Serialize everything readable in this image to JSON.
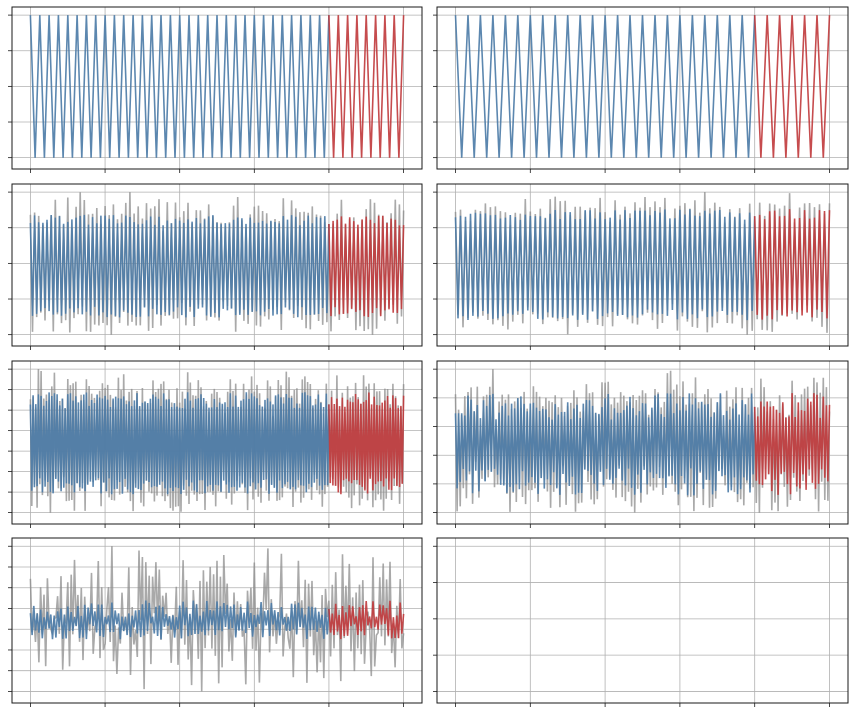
{
  "chart_data": [
    {
      "type": "line",
      "panel": 1,
      "n_cycles": 40,
      "split": 0.8,
      "level": [
        0,
        1
      ],
      "amp": 1.0,
      "noise": 0.0,
      "grey_extra": 0.0,
      "seed": 11,
      "series": [
        {
          "role": "history",
          "color": "#4a7aa6"
        },
        {
          "role": "forecast",
          "color": "#c0393b"
        },
        {
          "role": "actual",
          "color": "#8c8c8c"
        }
      ],
      "grid": true,
      "n_xticks": 6,
      "n_yticks": 5
    },
    {
      "type": "line",
      "panel": 2,
      "n_cycles": 30,
      "split": 0.8,
      "level": [
        0,
        1
      ],
      "amp": 1.0,
      "noise": 0.0,
      "grey_extra": 0.0,
      "seed": 12,
      "series": [
        {
          "role": "history",
          "color": "#4a7aa6"
        },
        {
          "role": "forecast",
          "color": "#c0393b"
        },
        {
          "role": "actual",
          "color": "#8c8c8c"
        }
      ],
      "grid": true,
      "n_xticks": 6,
      "n_yticks": 5
    },
    {
      "type": "line",
      "panel": 3,
      "n_cycles": 90,
      "split": 0.8,
      "level": [
        0,
        1
      ],
      "amp": 0.85,
      "noise": 0.05,
      "grey_extra": 0.12,
      "seed": 13,
      "series": [
        {
          "role": "history",
          "color": "#4a7aa6"
        },
        {
          "role": "forecast",
          "color": "#c0393b"
        },
        {
          "role": "actual",
          "color": "#8c8c8c"
        }
      ],
      "grid": true,
      "n_xticks": 6,
      "n_yticks": 5
    },
    {
      "type": "line",
      "panel": 4,
      "n_cycles": 75,
      "split": 0.8,
      "level": [
        0,
        1
      ],
      "amp": 0.92,
      "noise": 0.05,
      "grey_extra": 0.1,
      "seed": 14,
      "series": [
        {
          "role": "history",
          "color": "#4a7aa6"
        },
        {
          "role": "forecast",
          "color": "#c0393b"
        },
        {
          "role": "actual",
          "color": "#8c8c8c"
        }
      ],
      "grid": true,
      "n_xticks": 6,
      "n_yticks": 5
    },
    {
      "type": "line",
      "panel": 5,
      "n_cycles": 140,
      "split": 0.8,
      "level": [
        0,
        1
      ],
      "amp": 0.85,
      "noise": 0.08,
      "grey_extra": 0.14,
      "seed": 15,
      "series": [
        {
          "role": "history",
          "color": "#4a7aa6"
        },
        {
          "role": "forecast",
          "color": "#c0393b"
        },
        {
          "role": "actual",
          "color": "#8c8c8c"
        }
      ],
      "grid": true,
      "n_xticks": 6,
      "n_yticks": 8
    },
    {
      "type": "line",
      "panel": 6,
      "n_cycles": 120,
      "split": 0.8,
      "level": [
        0,
        1
      ],
      "amp": 0.78,
      "noise": 0.14,
      "grey_extra": 0.16,
      "seed": 16,
      "series": [
        {
          "role": "history",
          "color": "#4a7aa6"
        },
        {
          "role": "forecast",
          "color": "#c0393b"
        },
        {
          "role": "actual",
          "color": "#8c8c8c"
        }
      ],
      "grid": true,
      "n_xticks": 6,
      "n_yticks": 6
    },
    {
      "type": "line",
      "panel": 7,
      "n_cycles": 110,
      "split": 0.8,
      "level": [
        0,
        1
      ],
      "amp": 0.4,
      "noise": 0.15,
      "grey_extra": 0.55,
      "seed": 17,
      "series": [
        {
          "role": "history",
          "color": "#4a7aa6"
        },
        {
          "role": "forecast",
          "color": "#c0393b"
        },
        {
          "role": "actual",
          "color": "#8c8c8c"
        }
      ],
      "grid": true,
      "n_xticks": 6,
      "n_yticks": 8
    },
    {
      "type": "line",
      "panel": 8,
      "empty": true,
      "grid": true,
      "n_xticks": 6,
      "n_yticks": 5
    }
  ]
}
